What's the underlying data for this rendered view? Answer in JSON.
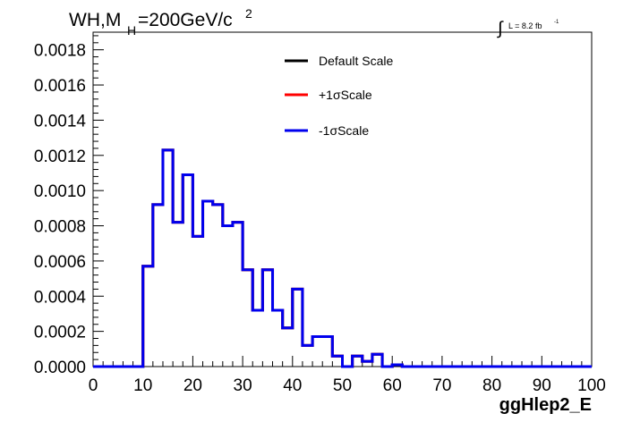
{
  "chart_data": {
    "type": "histogram",
    "title": {
      "prefix": "WH,M",
      "subscript": "H",
      "mid": "=200GeV/c",
      "superscript": "2"
    },
    "luminosity": {
      "integral_symbol": "∫",
      "text": "L = 8.2 fb",
      "superscript": "-1"
    },
    "xlabel": "ggHlep2_E",
    "ylabel": "",
    "xlim": [
      0,
      100
    ],
    "ylim": [
      0,
      0.0019
    ],
    "x_ticks": [
      0,
      10,
      20,
      30,
      40,
      50,
      60,
      70,
      80,
      90,
      100
    ],
    "x_tick_labels": [
      "0",
      "10",
      "20",
      "30",
      "40",
      "50",
      "60",
      "70",
      "80",
      "90",
      "100"
    ],
    "y_ticks": [
      0,
      0.0002,
      0.0004,
      0.0006,
      0.0008,
      0.001,
      0.0012,
      0.0014,
      0.0016,
      0.0018
    ],
    "y_tick_labels": [
      "0.0000",
      "0.0002",
      "0.0004",
      "0.0006",
      "0.0008",
      "0.0010",
      "0.0012",
      "0.0014",
      "0.0016",
      "0.0018"
    ],
    "bin_edges": [
      0,
      2,
      4,
      6,
      8,
      10,
      12,
      14,
      16,
      18,
      20,
      22,
      24,
      26,
      28,
      30,
      32,
      34,
      36,
      38,
      40,
      42,
      44,
      46,
      48,
      50,
      52,
      54,
      56,
      58,
      60,
      62,
      64,
      66,
      68,
      70,
      72,
      74,
      76,
      78,
      80,
      82,
      84,
      86,
      88,
      90,
      92,
      94,
      96,
      98,
      100
    ],
    "series": [
      {
        "name": "Default Scale",
        "color": "#000000",
        "values": [
          0,
          0,
          0,
          0,
          0,
          0.00057,
          0.00092,
          0.00123,
          0.00082,
          0.00109,
          0.00074,
          0.00094,
          0.00092,
          0.0008,
          0.00082,
          0.00055,
          0.00032,
          0.00055,
          0.00032,
          0.00022,
          0.00044,
          0.00012,
          0.00017,
          0.00017,
          6e-05,
          0,
          6e-05,
          3e-05,
          7e-05,
          0,
          1e-05,
          0,
          0,
          0,
          0,
          0,
          0,
          0,
          0,
          0,
          0,
          0,
          0,
          0,
          0,
          0,
          0,
          0,
          0,
          0
        ]
      },
      {
        "name": "+1σScale",
        "color": "#ff0000",
        "values": [
          0,
          0,
          0,
          0,
          0,
          0.00057,
          0.00092,
          0.00123,
          0.00082,
          0.00109,
          0.00074,
          0.00094,
          0.00092,
          0.0008,
          0.00082,
          0.00055,
          0.00032,
          0.00055,
          0.00032,
          0.00022,
          0.00044,
          0.00012,
          0.00017,
          0.00017,
          6e-05,
          0,
          6e-05,
          3e-05,
          7e-05,
          0,
          1e-05,
          0,
          0,
          0,
          0,
          0,
          0,
          0,
          0,
          0,
          0,
          0,
          0,
          0,
          0,
          0,
          0,
          0,
          0,
          0
        ]
      },
      {
        "name": "-1σScale",
        "color": "#0000ee",
        "values": [
          0,
          0,
          0,
          0,
          0,
          0.00057,
          0.00092,
          0.00123,
          0.00082,
          0.00109,
          0.00074,
          0.00094,
          0.00092,
          0.0008,
          0.00082,
          0.00055,
          0.00032,
          0.00055,
          0.00032,
          0.00022,
          0.00044,
          0.00012,
          0.00017,
          0.00017,
          6e-05,
          0,
          6e-05,
          3e-05,
          7e-05,
          0,
          1e-05,
          0,
          0,
          0,
          0,
          0,
          0,
          0,
          0,
          0,
          0,
          0,
          0,
          0,
          0,
          0,
          0,
          0,
          0,
          0
        ]
      }
    ],
    "legend": {
      "position": "top-center",
      "entries": [
        "Default Scale",
        "+1σScale",
        "-1σScale"
      ]
    },
    "grid": false
  }
}
